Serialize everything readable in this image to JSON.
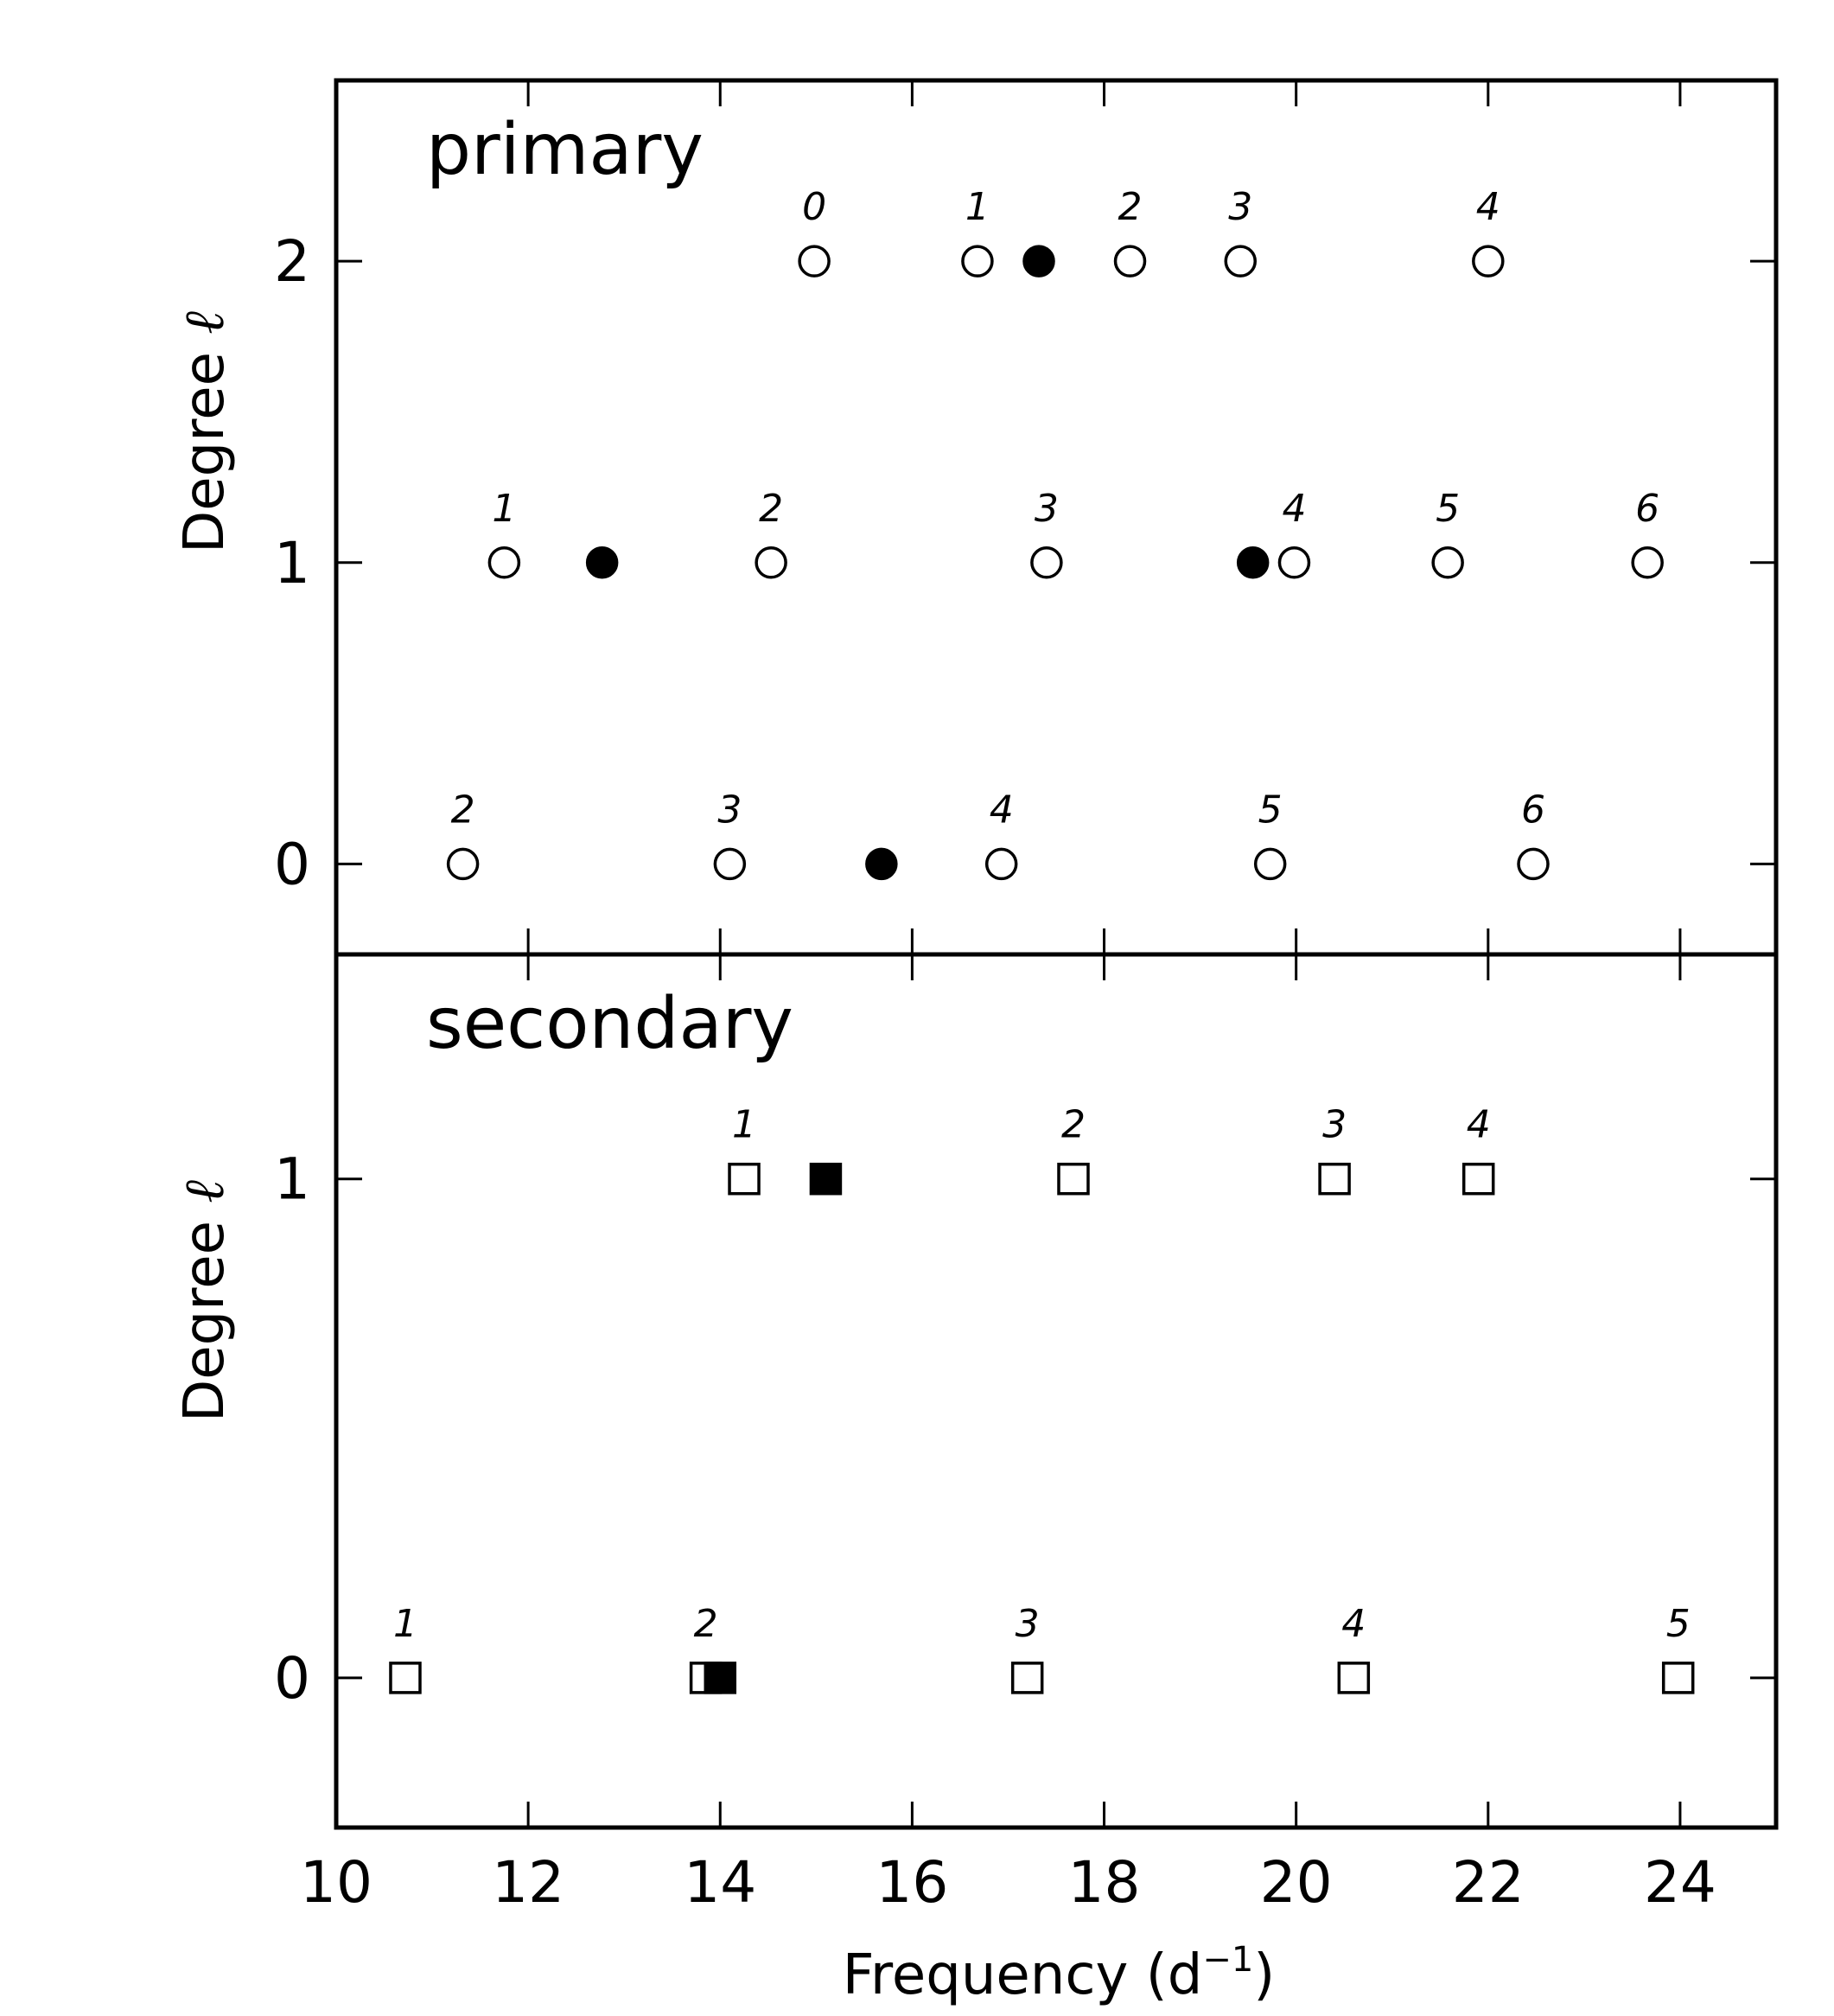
{
  "chart_data": {
    "type": "scatter",
    "xlabel": "Frequency (d",
    "xlabel_sup": "−1",
    "xlabel_close": ")",
    "xlim": [
      10,
      25
    ],
    "xticks": [
      10,
      12,
      14,
      16,
      18,
      20,
      22,
      24
    ],
    "panels": [
      {
        "title": "primary",
        "ylabel": "Degree ℓ",
        "ylim": [
          -0.3,
          2.6
        ],
        "yticks": [
          0,
          1,
          2
        ],
        "marker": "circle",
        "points": [
          {
            "x": 14.98,
            "y": 2,
            "label": "0",
            "filled": false
          },
          {
            "x": 16.68,
            "y": 2,
            "label": "1",
            "filled": false
          },
          {
            "x": 17.32,
            "y": 2,
            "label": "",
            "filled": true
          },
          {
            "x": 18.27,
            "y": 2,
            "label": "2",
            "filled": false
          },
          {
            "x": 19.42,
            "y": 2,
            "label": "3",
            "filled": false
          },
          {
            "x": 22.0,
            "y": 2,
            "label": "4",
            "filled": false
          },
          {
            "x": 11.75,
            "y": 1,
            "label": "1",
            "filled": false
          },
          {
            "x": 12.77,
            "y": 1,
            "label": "",
            "filled": true
          },
          {
            "x": 14.53,
            "y": 1,
            "label": "2",
            "filled": false
          },
          {
            "x": 17.4,
            "y": 1,
            "label": "3",
            "filled": false
          },
          {
            "x": 19.55,
            "y": 1,
            "label": "",
            "filled": true
          },
          {
            "x": 19.98,
            "y": 1,
            "label": "4",
            "filled": false
          },
          {
            "x": 21.58,
            "y": 1,
            "label": "5",
            "filled": false
          },
          {
            "x": 23.66,
            "y": 1,
            "label": "6",
            "filled": false
          },
          {
            "x": 11.32,
            "y": 0,
            "label": "2",
            "filled": false
          },
          {
            "x": 14.1,
            "y": 0,
            "label": "3",
            "filled": false
          },
          {
            "x": 15.68,
            "y": 0,
            "label": "",
            "filled": true
          },
          {
            "x": 16.93,
            "y": 0,
            "label": "4",
            "filled": false
          },
          {
            "x": 19.73,
            "y": 0,
            "label": "5",
            "filled": false
          },
          {
            "x": 22.47,
            "y": 0,
            "label": "6",
            "filled": false
          }
        ]
      },
      {
        "title": "secondary",
        "ylabel": "Degree ℓ",
        "ylim": [
          -0.3,
          1.45
        ],
        "yticks": [
          0,
          1
        ],
        "marker": "square",
        "points": [
          {
            "x": 14.25,
            "y": 1,
            "label": "1",
            "filled": false
          },
          {
            "x": 15.1,
            "y": 1,
            "label": "",
            "filled": true
          },
          {
            "x": 17.68,
            "y": 1,
            "label": "2",
            "filled": false
          },
          {
            "x": 20.4,
            "y": 1,
            "label": "3",
            "filled": false
          },
          {
            "x": 21.9,
            "y": 1,
            "label": "4",
            "filled": false
          },
          {
            "x": 10.72,
            "y": 0,
            "label": "1",
            "filled": false
          },
          {
            "x": 13.85,
            "y": 0,
            "label": "2",
            "filled": false
          },
          {
            "x": 14.0,
            "y": 0,
            "label": "",
            "filled": true
          },
          {
            "x": 17.2,
            "y": 0,
            "label": "3",
            "filled": false
          },
          {
            "x": 20.6,
            "y": 0,
            "label": "4",
            "filled": false
          },
          {
            "x": 23.98,
            "y": 0,
            "label": "5",
            "filled": false
          }
        ]
      }
    ]
  }
}
